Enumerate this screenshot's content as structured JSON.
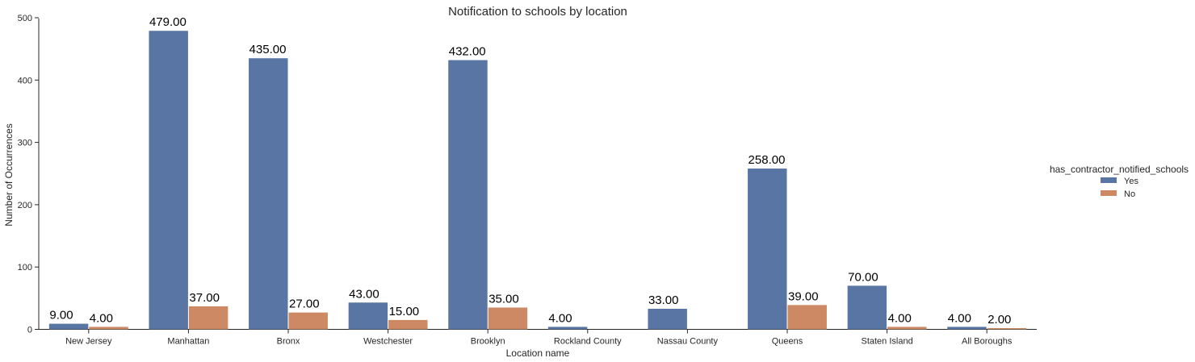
{
  "chart_data": {
    "type": "bar",
    "title": "Notification to schools by location",
    "xlabel": "Location name",
    "ylabel": "Number of Occurrences",
    "categories": [
      "New Jersey",
      "Manhattan",
      "Bronx",
      "Westchester",
      "Brooklyn",
      "Rockland County",
      "Nassau County",
      "Queens",
      "Staten Island",
      "All Boroughs"
    ],
    "series": [
      {
        "name": "Yes",
        "color": "#5975a4",
        "values": [
          9,
          479,
          435,
          43,
          432,
          4,
          33,
          258,
          70,
          4
        ]
      },
      {
        "name": "No",
        "color": "#cc8963",
        "values": [
          4,
          37,
          27,
          15,
          35,
          null,
          null,
          39,
          4,
          2
        ]
      }
    ],
    "ylim": [
      0,
      500
    ],
    "yticks": [
      0,
      100,
      200,
      300,
      400,
      500
    ],
    "legend": {
      "title": "has_contractor_notified_schools",
      "placement": "right"
    },
    "grid": false
  }
}
